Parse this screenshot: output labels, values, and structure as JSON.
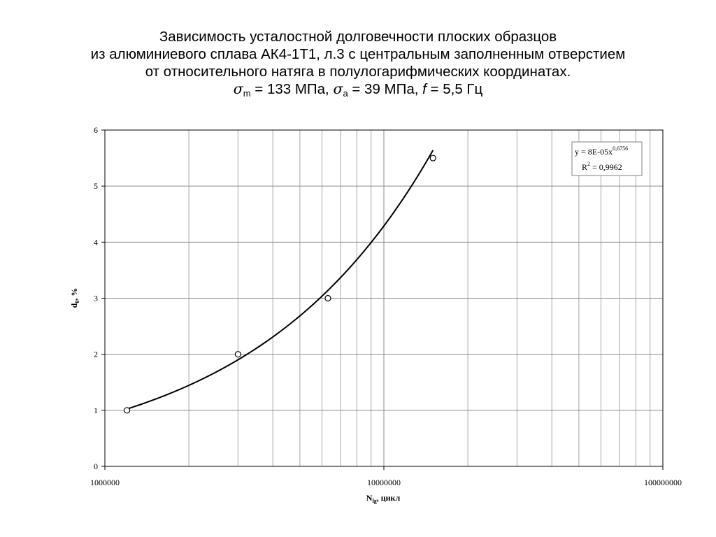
{
  "title": {
    "line1": "Зависимость усталостной долговечности плоских образцов",
    "line2": "из алюминиевого сплава АК4-1Т1, л.3 с центральным заполненным отверстием",
    "line3": "от относительного натяга в полулогарифмических координатах.",
    "line4": {
      "sigma": "σ",
      "sub_m": "m",
      "part_m": " = 133 МПа, ",
      "sub_a": "a",
      "part_a": " = 39 МПа, ",
      "f": "f",
      "part_f": " = 5,5 Гц"
    }
  },
  "chart_data": {
    "type": "scatter",
    "x_scale": "log",
    "xlim": [
      1000000,
      100000000
    ],
    "ylim": [
      0,
      6
    ],
    "x_ticks": [
      "1000000",
      "10000000",
      "100000000"
    ],
    "y_ticks": [
      "0",
      "1",
      "2",
      "3",
      "4",
      "5",
      "6"
    ],
    "xlabel": {
      "main": "N",
      "sub": "lg",
      "rest": ", цикл"
    },
    "ylabel": {
      "main": "d",
      "sub": "0",
      "rest": ", %"
    },
    "grid": true,
    "points": [
      {
        "x": 1200000,
        "y": 1
      },
      {
        "x": 3000000,
        "y": 2
      },
      {
        "x": 6300000,
        "y": 3
      },
      {
        "x": 15000000,
        "y": 5.5
      }
    ],
    "trendline": {
      "type": "power",
      "coef": 8e-05,
      "exponent": 0.6756,
      "x_range": [
        1200000,
        15000000
      ],
      "equation_prefix": "y = 8E-05x",
      "equation_exponent": "0,6756",
      "r2_prefix": "R",
      "r2_power": "2",
      "r2_value": " = 0,9962"
    }
  }
}
